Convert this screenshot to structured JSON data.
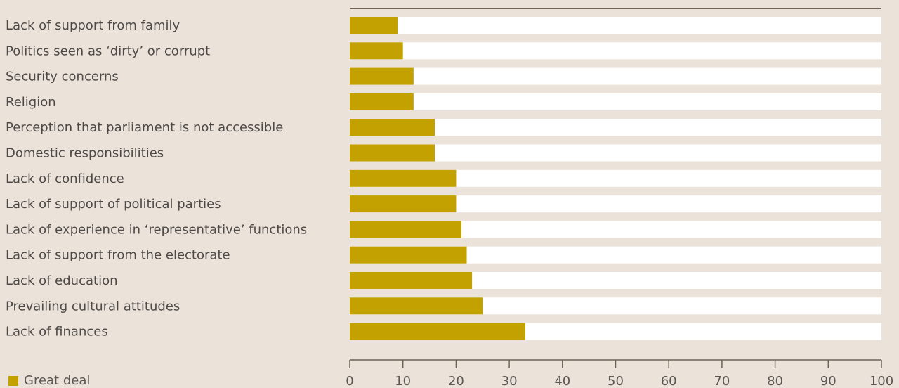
{
  "chart_data": {
    "type": "bar",
    "orientation": "horizontal",
    "stacked_to_100": true,
    "categories": [
      "Lack of support from family",
      "Politics seen as ‘dirty’ or corrupt",
      "Security concerns",
      "Religion",
      "Perception that parliament is not accessible",
      "Domestic responsibilities",
      "Lack of confidence",
      "Lack of support of political parties",
      "Lack of experience in ‘representative’ functions",
      "Lack of support from the electorate",
      "Lack of education",
      "Prevailing cultural attitudes",
      "Lack of finances"
    ],
    "series": [
      {
        "name": "Great deal",
        "color": "#c3a100",
        "values": [
          9,
          10,
          12,
          12,
          16,
          16,
          20,
          20,
          21,
          22,
          23,
          25,
          33
        ]
      }
    ],
    "remainder_color": "#ffffff",
    "xlim": [
      0,
      100
    ],
    "xticks": [
      "0",
      "10",
      "20",
      "30",
      "40",
      "50",
      "60",
      "70",
      "80",
      "90",
      "100"
    ],
    "xlabel": "",
    "ylabel": "",
    "title": "",
    "grid": false,
    "legend_position": "bottom-left"
  },
  "legend": {
    "label": "Great deal"
  }
}
